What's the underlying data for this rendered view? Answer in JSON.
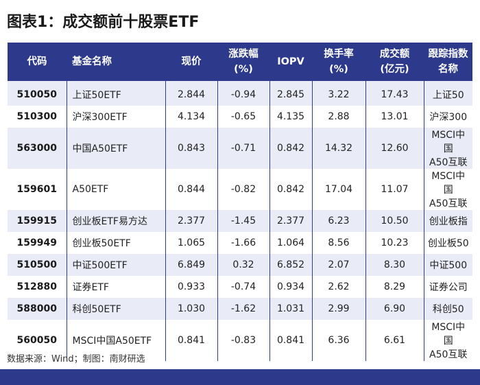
{
  "title": "图表1：成交额前十股票ETF",
  "headers": [
    "代码",
    "基金名称",
    "现价",
    "涨跌幅\n(%)",
    "IOPV",
    "换手率\n(%)",
    "成交额\n(亿元)",
    "跟踪指数\n名称"
  ],
  "rows": [
    {
      "code": "510050",
      "name": "上证50ETF",
      "price": "2.844",
      "change": "-0.94",
      "iopv": "2.845",
      "turnover": "3.22",
      "volume": "17.43",
      "index": "上证50"
    },
    {
      "code": "510300",
      "name": "沪深300ETF",
      "price": "4.134",
      "change": "-0.65",
      "iopv": "4.135",
      "turnover": "2.88",
      "volume": "13.01",
      "index": "沪深300"
    },
    {
      "code": "563000",
      "name": "中国A50ETF",
      "price": "0.843",
      "change": "-0.71",
      "iopv": "0.842",
      "turnover": "14.32",
      "volume": "12.60",
      "index": "MSCI中国\nA50互联"
    },
    {
      "code": "159601",
      "name": "A50ETF",
      "price": "0.844",
      "change": "-0.82",
      "iopv": "0.842",
      "turnover": "17.04",
      "volume": "11.07",
      "index": "MSCI中国\nA50互联"
    },
    {
      "code": "159915",
      "name": "创业板ETF易方达",
      "price": "2.377",
      "change": "-1.45",
      "iopv": "2.377",
      "turnover": "6.23",
      "volume": "10.50",
      "index": "创业板指"
    },
    {
      "code": "159949",
      "name": "创业板50ETF",
      "price": "1.065",
      "change": "-1.66",
      "iopv": "1.064",
      "turnover": "8.56",
      "volume": "10.23",
      "index": "创业板50"
    },
    {
      "code": "510500",
      "name": "中证500ETF",
      "price": "6.849",
      "change": "0.32",
      "iopv": "6.852",
      "turnover": "2.07",
      "volume": "8.30",
      "index": "中证500"
    },
    {
      "code": "512880",
      "name": "证券ETF",
      "price": "0.933",
      "change": "-0.74",
      "iopv": "0.934",
      "turnover": "2.62",
      "volume": "8.29",
      "index": "证券公司"
    },
    {
      "code": "588000",
      "name": "科创50ETF",
      "price": "1.030",
      "change": "-1.62",
      "iopv": "1.031",
      "turnover": "2.99",
      "volume": "6.90",
      "index": "科创50"
    },
    {
      "code": "560050",
      "name": "MSCI中国A50ETF",
      "price": "0.841",
      "change": "-0.83",
      "iopv": "0.841",
      "turnover": "6.36",
      "volume": "6.61",
      "index": "MSCI中国\nA50互联"
    }
  ],
  "source": "数据来源：Wind；制图：南财研选",
  "colors": {
    "header_bg": "#2d3a8c",
    "row_alt": "#e9ecf6"
  }
}
